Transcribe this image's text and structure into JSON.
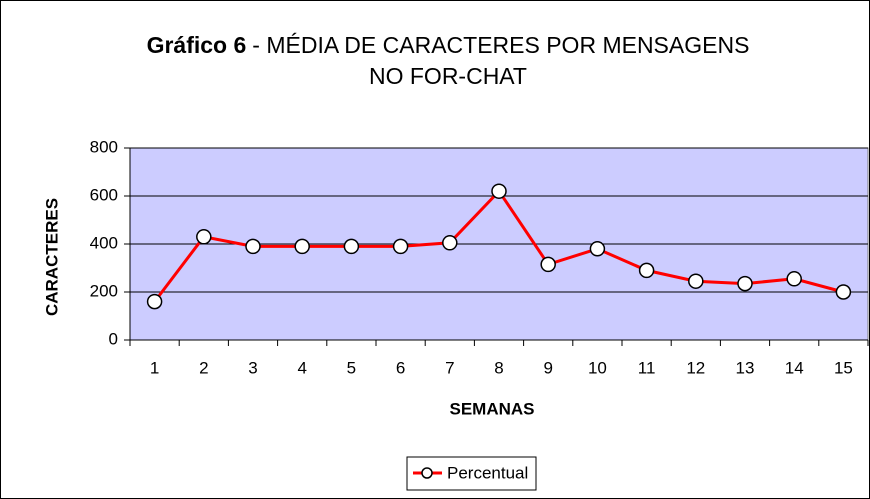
{
  "chart_data": {
    "type": "line",
    "title": {
      "bold": "Gráfico 6",
      "rest": "- MÉDIA DE CARACTERES POR MENSAGENS",
      "line2": "NO FOR-CHAT"
    },
    "x_label": "SEMANAS",
    "y_label": "CARACTERES",
    "categories": [
      "1",
      "2",
      "3",
      "4",
      "5",
      "6",
      "7",
      "8",
      "9",
      "10",
      "11",
      "12",
      "13",
      "14",
      "15"
    ],
    "series": [
      {
        "name": "Percentual",
        "color": "#ff0000",
        "values": [
          160,
          430,
          390,
          390,
          390,
          390,
          405,
          620,
          315,
          380,
          290,
          245,
          235,
          255,
          200
        ]
      }
    ],
    "ylim": [
      0,
      800
    ],
    "yticks": [
      0,
      200,
      400,
      600,
      800
    ],
    "grid": true,
    "legend": "bottom"
  }
}
